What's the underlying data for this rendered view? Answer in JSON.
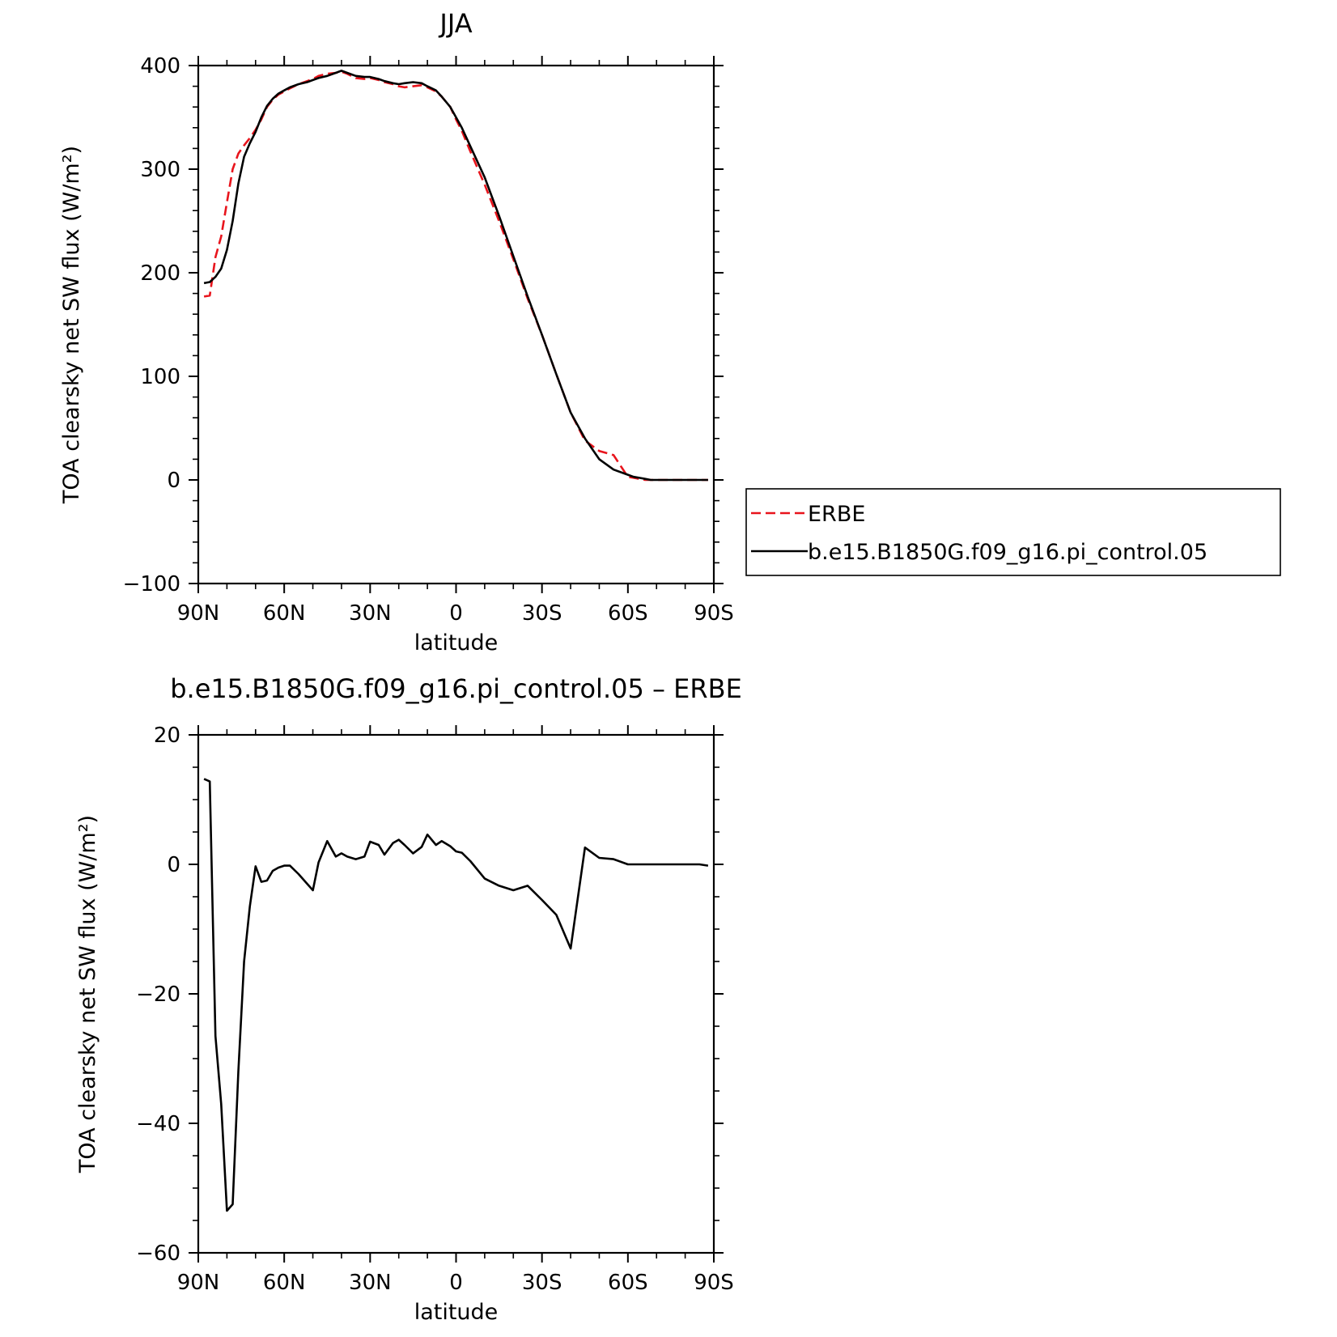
{
  "chart_data": [
    {
      "type": "line",
      "title": "JJA",
      "xlabel": "latitude",
      "ylabel": "TOA clearsky net SW flux (W/m²)",
      "ylim": [
        -100,
        400
      ],
      "yticks": [
        -100,
        0,
        100,
        200,
        300,
        400
      ],
      "xlim": [
        90,
        -90
      ],
      "xticks": [
        90,
        60,
        30,
        0,
        -30,
        -60,
        -90
      ],
      "xtick_labels": [
        "90N",
        "60N",
        "30N",
        "0",
        "30S",
        "60S",
        "90S"
      ],
      "legend": {
        "placement": "right"
      },
      "series": [
        {
          "name": "ERBE",
          "color": "#e8141c",
          "style": "dashed",
          "x": [
            88,
            86,
            84,
            82,
            80,
            78,
            76,
            74,
            72,
            70,
            68,
            66,
            64,
            62,
            60,
            58,
            55,
            52,
            50,
            48,
            45,
            42,
            40,
            38,
            35,
            32,
            30,
            27,
            25,
            22,
            20,
            18,
            15,
            12,
            10,
            7,
            5,
            2,
            0,
            -2,
            -5,
            -10,
            -15,
            -20,
            -25,
            -30,
            -35,
            -40,
            -45,
            -50,
            -55,
            -60,
            -62,
            -64,
            -66,
            -68,
            -70,
            -75,
            -80,
            -85,
            -88
          ],
          "y": [
            177,
            178,
            215,
            235,
            268,
            300,
            315,
            323,
            330,
            338,
            348,
            360,
            367,
            372,
            375,
            378,
            382,
            385,
            387,
            390,
            392,
            393,
            394,
            392,
            388,
            387,
            388,
            386,
            384,
            382,
            380,
            379,
            380,
            381,
            379,
            375,
            370,
            360,
            348,
            337,
            317,
            285,
            250,
            213,
            175,
            140,
            102,
            65,
            38,
            28,
            24,
            3,
            2,
            1,
            0,
            0,
            0,
            0,
            0,
            0,
            0
          ]
        },
        {
          "name": "b.e15.B1850G.f09_g16.pi_control.05",
          "color": "#000000",
          "style": "solid",
          "x": [
            88,
            86,
            84,
            82,
            80,
            78,
            76,
            74,
            72,
            70,
            68,
            66,
            64,
            62,
            60,
            58,
            55,
            52,
            50,
            48,
            45,
            42,
            40,
            38,
            35,
            32,
            30,
            27,
            25,
            22,
            20,
            18,
            15,
            12,
            10,
            7,
            5,
            2,
            0,
            -2,
            -5,
            -10,
            -15,
            -20,
            -25,
            -30,
            -35,
            -40,
            -45,
            -50,
            -55,
            -60,
            -62,
            -64,
            -66,
            -68,
            -70,
            -75,
            -80,
            -85,
            -88
          ],
          "y": [
            190,
            191,
            196,
            204,
            222,
            250,
            286,
            312,
            325,
            336,
            350,
            361,
            368,
            373,
            376,
            379,
            382,
            384,
            386,
            388,
            390,
            393,
            395,
            393,
            390,
            389,
            389,
            387,
            385,
            383,
            382,
            383,
            384,
            383,
            380,
            376,
            370,
            360,
            350,
            340,
            322,
            292,
            255,
            216,
            177,
            140,
            102,
            65,
            40,
            20,
            10,
            5,
            3,
            2,
            1,
            0,
            0,
            0,
            0,
            0,
            0
          ]
        }
      ]
    },
    {
      "type": "line",
      "title": "b.e15.B1850G.f09_g16.pi_control.05 – ERBE",
      "xlabel": "latitude",
      "ylabel": "TOA clearsky net SW flux (W/m²)",
      "ylim": [
        -60,
        20
      ],
      "yticks": [
        -60,
        -40,
        -20,
        0,
        20
      ],
      "xlim": [
        90,
        -90
      ],
      "xticks": [
        90,
        60,
        30,
        0,
        -30,
        -60,
        -90
      ],
      "xtick_labels": [
        "90N",
        "60N",
        "30N",
        "0",
        "30S",
        "60S",
        "90S"
      ],
      "series": [
        {
          "name": "",
          "color": "#000000",
          "style": "solid",
          "x": [
            88,
            86,
            84,
            82,
            80,
            78,
            76,
            74,
            72,
            70,
            68,
            66,
            64,
            62,
            60,
            58,
            55,
            52,
            50,
            48,
            45,
            42,
            40,
            38,
            35,
            32,
            30,
            27,
            25,
            22,
            20,
            18,
            15,
            12,
            10,
            7,
            5,
            2,
            0,
            -2,
            -5,
            -10,
            -15,
            -20,
            -25,
            -30,
            -35,
            -40,
            -45,
            -50,
            -55,
            -60,
            -62,
            -64,
            -66,
            -68,
            -70,
            -75,
            -80,
            -85,
            -88
          ],
          "y": [
            13.2,
            12.8,
            -26.5,
            -37,
            -53.5,
            -52.5,
            -32,
            -15,
            -6.5,
            -0.3,
            -2.7,
            -2.5,
            -1.0,
            -0.5,
            -0.2,
            -0.2,
            -1.5,
            -3.0,
            -4.0,
            0.3,
            3.6,
            1.2,
            1.7,
            1.2,
            0.8,
            1.2,
            3.5,
            3.0,
            1.5,
            3.3,
            3.8,
            3.0,
            1.7,
            2.7,
            4.6,
            3.0,
            3.6,
            2.8,
            2.0,
            1.8,
            0.5,
            -2.2,
            -3.3,
            -4.0,
            -3.3,
            -5.5,
            -7.8,
            -13.0,
            2.6,
            1.0,
            0.8,
            0.0,
            0.0,
            0.0,
            0.0,
            0.0,
            0.0,
            0.0,
            0.0,
            0.0,
            -0.2
          ]
        }
      ]
    }
  ]
}
